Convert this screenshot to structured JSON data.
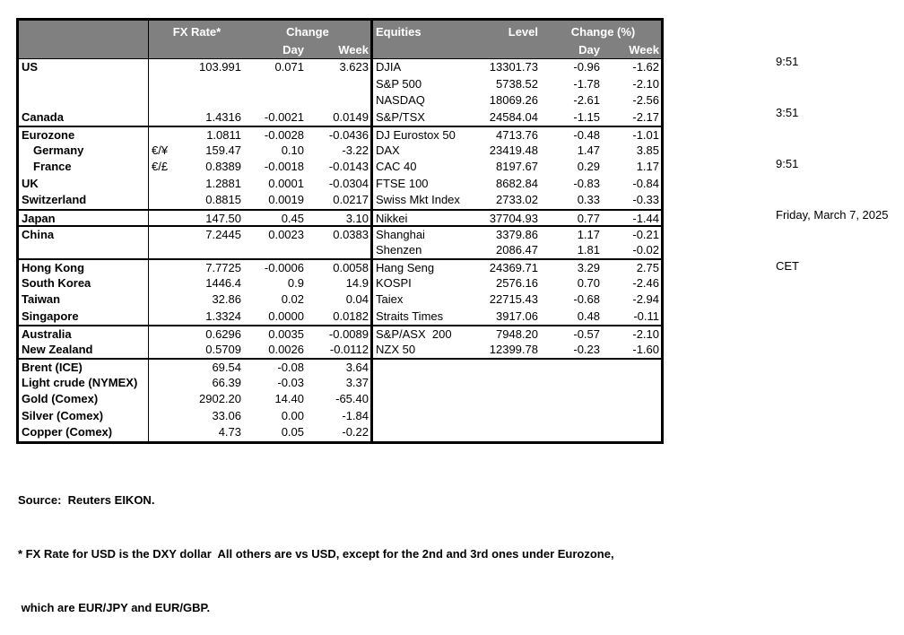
{
  "header": {
    "fx_rate": "FX Rate*",
    "change": "Change",
    "equities": "Equities",
    "level": "Level",
    "change_pct": "Change (%)",
    "day": "Day",
    "week": "Week"
  },
  "rows": [
    {
      "n": "US",
      "p": "",
      "r": "103.991",
      "d": "0.071",
      "w": "3.623",
      "en": "DJIA",
      "el": "13301.73",
      "ed": "-0.96",
      "ew": "-1.62",
      "g": false,
      "i": false
    },
    {
      "n": "",
      "p": "",
      "r": "",
      "d": "",
      "w": "",
      "en": "S&P 500",
      "el": "5738.52",
      "ed": "-1.78",
      "ew": "-2.10",
      "g": false,
      "i": false
    },
    {
      "n": "",
      "p": "",
      "r": "",
      "d": "",
      "w": "",
      "en": "NASDAQ",
      "el": "18069.26",
      "ed": "-2.61",
      "ew": "-2.56",
      "g": false,
      "i": false
    },
    {
      "n": "Canada",
      "p": "",
      "r": "1.4316",
      "d": "-0.0021",
      "w": "0.0149",
      "en": "S&P/TSX",
      "el": "24584.04",
      "ed": "-1.15",
      "ew": "-2.17",
      "g": false,
      "i": false
    },
    {
      "n": "Eurozone",
      "p": "",
      "r": "1.0811",
      "d": "-0.0028",
      "w": "-0.0436",
      "en": "DJ Eurostox 50",
      "el": "4713.76",
      "ed": "-0.48",
      "ew": "-1.01",
      "g": true,
      "i": false
    },
    {
      "n": "Germany",
      "p": "€/¥",
      "r": "159.47",
      "d": "0.10",
      "w": "-3.22",
      "en": "DAX",
      "el": "23419.48",
      "ed": "1.47",
      "ew": "3.85",
      "g": false,
      "i": true
    },
    {
      "n": "France",
      "p": "€/£",
      "r": "0.8389",
      "d": "-0.0018",
      "w": "-0.0143",
      "en": "CAC 40",
      "el": "8197.67",
      "ed": "0.29",
      "ew": "1.17",
      "g": false,
      "i": true
    },
    {
      "n": "UK",
      "p": "",
      "r": "1.2881",
      "d": "0.0001",
      "w": "-0.0304",
      "en": "FTSE 100",
      "el": "8682.84",
      "ed": "-0.83",
      "ew": "-0.84",
      "g": false,
      "i": false
    },
    {
      "n": "Switzerland",
      "p": "",
      "r": "0.8815",
      "d": "0.0019",
      "w": "0.0217",
      "en": "Swiss Mkt Index",
      "el": "2733.02",
      "ed": "0.33",
      "ew": "-0.33",
      "g": false,
      "i": false
    },
    {
      "n": "Japan",
      "p": "",
      "r": "147.50",
      "d": "0.45",
      "w": "3.10",
      "en": "Nikkei",
      "el": "37704.93",
      "ed": "0.77",
      "ew": "-1.44",
      "g": true,
      "i": false
    },
    {
      "n": "China",
      "p": "",
      "r": "7.2445",
      "d": "0.0023",
      "w": "0.0383",
      "en": "Shanghai",
      "el": "3379.86",
      "ed": "1.17",
      "ew": "-0.21",
      "g": true,
      "i": false
    },
    {
      "n": "",
      "p": "",
      "r": "",
      "d": "",
      "w": "",
      "en": "Shenzen",
      "el": "2086.47",
      "ed": "1.81",
      "ew": "-0.02",
      "g": false,
      "i": false
    },
    {
      "n": "Hong Kong",
      "p": "",
      "r": "7.7725",
      "d": "-0.0006",
      "w": "0.0058",
      "en": "Hang Seng",
      "el": "24369.71",
      "ed": "3.29",
      "ew": "2.75",
      "g": true,
      "i": false
    },
    {
      "n": "South Korea",
      "p": "",
      "r": "1446.4",
      "d": "0.9",
      "w": "14.9",
      "en": "KOSPI",
      "el": "2576.16",
      "ed": "0.70",
      "ew": "-2.46",
      "g": false,
      "i": false
    },
    {
      "n": "Taiwan",
      "p": "",
      "r": "32.86",
      "d": "0.02",
      "w": "0.04",
      "en": "Taiex",
      "el": "22715.43",
      "ed": "-0.68",
      "ew": "-2.94",
      "g": false,
      "i": false
    },
    {
      "n": "Singapore",
      "p": "",
      "r": "1.3324",
      "d": "0.0000",
      "w": "0.0182",
      "en": "Straits Times",
      "el": "3917.06",
      "ed": "0.48",
      "ew": "-0.11",
      "g": false,
      "i": false
    },
    {
      "n": "Australia",
      "p": "",
      "r": "0.6296",
      "d": "0.0035",
      "w": "-0.0089",
      "en": "S&P/ASX  200",
      "el": "7948.20",
      "ed": "-0.57",
      "ew": "-2.10",
      "g": true,
      "i": false
    },
    {
      "n": "New Zealand",
      "p": "",
      "r": "0.5709",
      "d": "0.0026",
      "w": "-0.0112",
      "en": "NZX 50",
      "el": "12399.78",
      "ed": "-0.23",
      "ew": "-1.60",
      "g": false,
      "i": false
    },
    {
      "n": "Brent (ICE)",
      "p": "",
      "r": "69.54",
      "d": "-0.08",
      "w": "3.64",
      "en": "",
      "el": "",
      "ed": "",
      "ew": "",
      "g": true,
      "i": false
    },
    {
      "n": "Light crude (NYMEX)",
      "p": "",
      "r": "66.39",
      "d": "-0.03",
      "w": "3.37",
      "en": "",
      "el": "",
      "ed": "",
      "ew": "",
      "g": false,
      "i": false
    },
    {
      "n": "Gold (Comex)",
      "p": "",
      "r": "2902.20",
      "d": "14.40",
      "w": "-65.40",
      "en": "",
      "el": "",
      "ed": "",
      "ew": "",
      "g": false,
      "i": false
    },
    {
      "n": "Silver (Comex)",
      "p": "",
      "r": "33.06",
      "d": "0.00",
      "w": "-1.84",
      "en": "",
      "el": "",
      "ed": "",
      "ew": "",
      "g": false,
      "i": false
    },
    {
      "n": "Copper (Comex)",
      "p": "",
      "r": "4.73",
      "d": "0.05",
      "w": "-0.22",
      "en": "",
      "el": "",
      "ed": "",
      "ew": "",
      "g": false,
      "i": false
    }
  ],
  "infoblock": {
    "times": [
      "9:51",
      "3:51",
      "9:51"
    ],
    "date": "Friday, March 7, 2025",
    "timezone": "CET"
  },
  "footer": {
    "source": "Source:  Reuters EIKON.",
    "note1": "* FX Rate for USD is the DXY dollar  All others are vs USD, except for the 2nd and 3rd ones under Eurozone,",
    "note2": " which are EUR/JPY and EUR/GBP."
  },
  "colors": {
    "header_bg": "#808080",
    "header_text": "#ffffff",
    "border": "#000000",
    "body_text": "#000000"
  }
}
